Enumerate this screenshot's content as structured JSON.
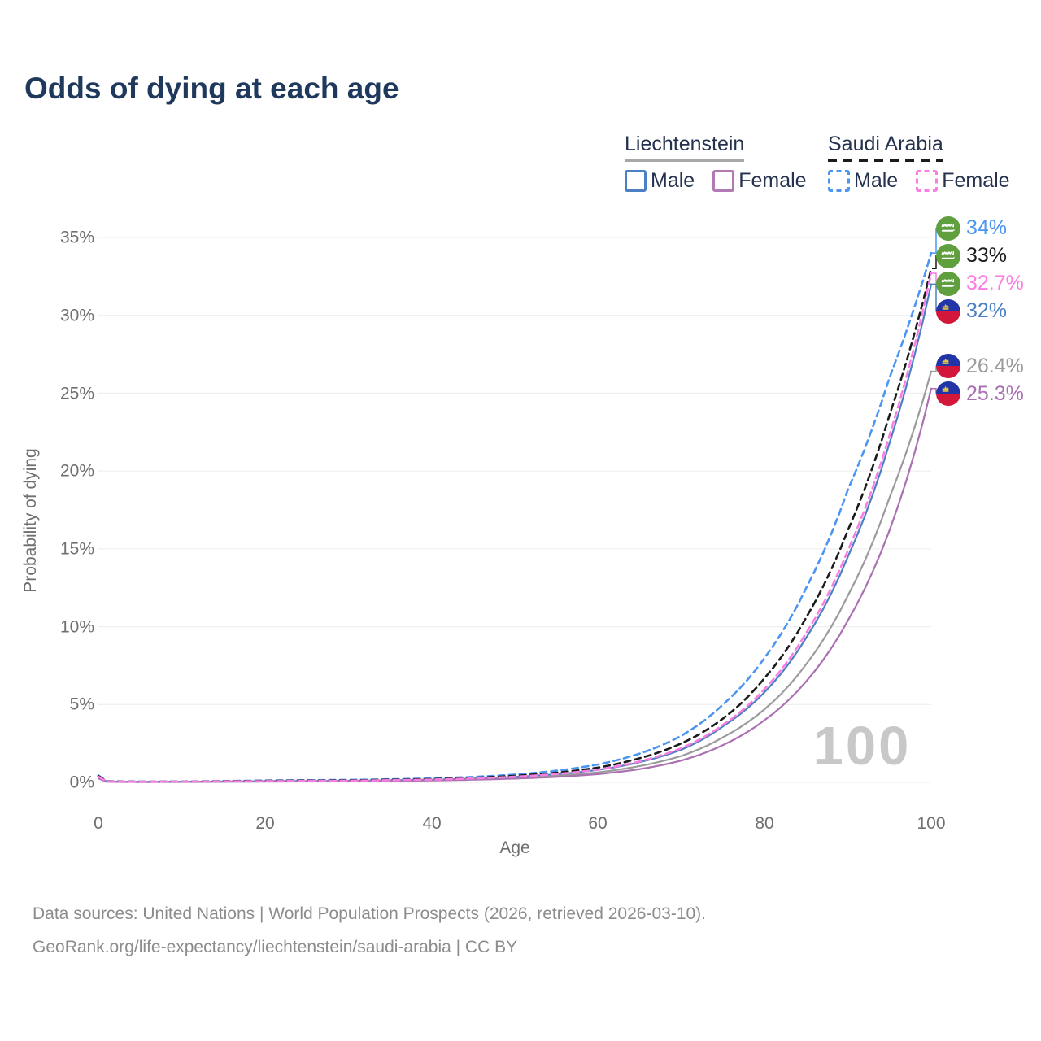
{
  "title": "Odds of dying at each age",
  "legend": {
    "groups": [
      {
        "label": "Liechtenstein",
        "line_style": "solid",
        "underline_color": "#a8a8a8",
        "items": [
          {
            "label": "Male",
            "color": "#4c7fc4"
          },
          {
            "label": "Female",
            "color": "#b17ab4"
          }
        ]
      },
      {
        "label": "Saudi Arabia",
        "line_style": "dashed",
        "underline_color": "#1b1b1b",
        "items": [
          {
            "label": "Male",
            "color": "#4b96f2"
          },
          {
            "label": "Female",
            "color": "#fa7ee2"
          }
        ]
      }
    ]
  },
  "chart_data": {
    "type": "line",
    "title": "Odds of dying at each age",
    "xlabel": "Age",
    "ylabel": "Probability of dying",
    "x_ticks": [
      "0",
      "20",
      "40",
      "60",
      "80",
      "100"
    ],
    "y_ticks": [
      "0%",
      "5%",
      "10%",
      "15%",
      "20%",
      "25%",
      "30%",
      "35%"
    ],
    "xlim": [
      0,
      100
    ],
    "ylim": [
      0,
      36.8
    ],
    "grid": true,
    "legend_position": "top-right",
    "watermark": "100",
    "sample_ages": [
      0,
      1,
      5,
      10,
      20,
      30,
      40,
      45,
      50,
      55,
      60,
      65,
      70,
      75,
      80,
      85,
      90,
      95,
      100
    ],
    "series": [
      {
        "name": "Saudi Arabia Male",
        "country": "Saudi Arabia",
        "sex": "Male",
        "flag": "saudi-arabia",
        "line": "dashed",
        "color": "#4b96f2",
        "end_label": "34%",
        "end_value": 34,
        "values": [
          0.45,
          0.08,
          0.05,
          0.06,
          0.12,
          0.16,
          0.25,
          0.35,
          0.5,
          0.75,
          1.15,
          1.85,
          3.0,
          5.0,
          8.0,
          12.5,
          18.8,
          26.0,
          34.0
        ]
      },
      {
        "name": "Saudi Arabia Both sexes",
        "country": "Saudi Arabia",
        "sex": "Both",
        "flag": "saudi-arabia",
        "line": "dashed",
        "color": "#1b1b1b",
        "end_label": "33%",
        "end_value": 33,
        "values": [
          0.4,
          0.07,
          0.04,
          0.05,
          0.1,
          0.13,
          0.21,
          0.29,
          0.42,
          0.62,
          0.95,
          1.55,
          2.5,
          4.1,
          6.7,
          10.6,
          16.2,
          23.6,
          33.0
        ]
      },
      {
        "name": "Saudi Arabia Female",
        "country": "Saudi Arabia",
        "sex": "Female",
        "flag": "saudi-arabia",
        "line": "dashed",
        "color": "#fa7ee2",
        "end_label": "32.7%",
        "end_value": 32.7,
        "values": [
          0.36,
          0.06,
          0.04,
          0.05,
          0.08,
          0.11,
          0.18,
          0.25,
          0.36,
          0.54,
          0.82,
          1.35,
          2.2,
          3.7,
          6.0,
          9.6,
          14.9,
          22.3,
          32.7
        ]
      },
      {
        "name": "Liechtenstein Male",
        "country": "Liechtenstein",
        "sex": "Male",
        "flag": "liechtenstein",
        "line": "solid",
        "color": "#4c7fc4",
        "end_label": "32%",
        "end_value": 32,
        "values": [
          0.35,
          0.05,
          0.03,
          0.04,
          0.08,
          0.1,
          0.17,
          0.24,
          0.35,
          0.52,
          0.8,
          1.3,
          2.1,
          3.6,
          5.8,
          9.3,
          14.5,
          21.8,
          32.0
        ]
      },
      {
        "name": "Liechtenstein Both sexes",
        "country": "Liechtenstein",
        "sex": "Both",
        "flag": "liechtenstein",
        "line": "solid",
        "color": "#9b9b9b",
        "end_label": "26.4%",
        "end_value": 26.4,
        "values": [
          0.3,
          0.04,
          0.03,
          0.04,
          0.06,
          0.09,
          0.14,
          0.2,
          0.28,
          0.42,
          0.64,
          1.05,
          1.7,
          2.9,
          4.7,
          7.6,
          12.0,
          18.3,
          26.4
        ]
      },
      {
        "name": "Liechtenstein Female",
        "country": "Liechtenstein",
        "sex": "Female",
        "flag": "liechtenstein",
        "line": "solid",
        "color": "#aa70b2",
        "end_label": "25.3%",
        "end_value": 25.3,
        "values": [
          0.25,
          0.04,
          0.02,
          0.03,
          0.05,
          0.07,
          0.12,
          0.17,
          0.24,
          0.35,
          0.53,
          0.85,
          1.4,
          2.4,
          4.0,
          6.5,
          10.4,
          16.2,
          25.3
        ]
      }
    ],
    "flag_colors": {
      "saudi_green": "#5f9f3e",
      "liechtenstein_blue": "#2135a8",
      "liechtenstein_red": "#d3173a",
      "crown_gold": "#e9c93f"
    }
  },
  "footer": {
    "line1": "Data sources: United Nations | World Population Prospects (2026, retrieved 2026-03-10).",
    "line2": "GeoRank.org/life-expectancy/liechtenstein/saudi-arabia | CC BY"
  }
}
